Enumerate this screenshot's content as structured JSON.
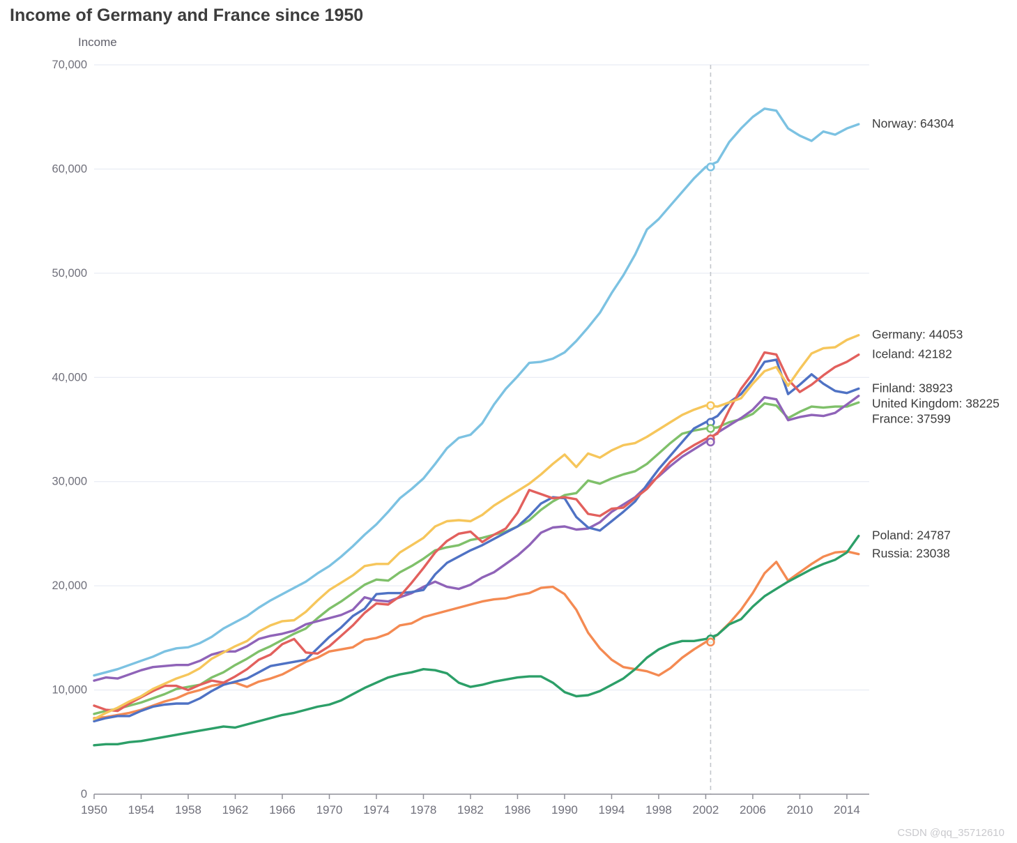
{
  "watermark": "CSDN @qq_35712610",
  "chart_data": {
    "type": "line",
    "title": "Income of Germany and France since 1950",
    "ylabel": "Income",
    "xlabel": "",
    "grid": true,
    "legend_position": "end-of-line-labels",
    "xlim": [
      1950,
      2015.9
    ],
    "ylim": [
      0,
      70000
    ],
    "x_ticks": [
      1950,
      1954,
      1958,
      1962,
      1966,
      1970,
      1974,
      1978,
      1982,
      1986,
      1990,
      1994,
      1998,
      2002,
      2006,
      2010,
      2014
    ],
    "y_ticks": [
      {
        "value": 0,
        "label": "0"
      },
      {
        "value": 10000,
        "label": "10,000"
      },
      {
        "value": 20000,
        "label": "20,000"
      },
      {
        "value": 30000,
        "label": "30,000"
      },
      {
        "value": 40000,
        "label": "40,000"
      },
      {
        "value": 50000,
        "label": "50,000"
      },
      {
        "value": 60000,
        "label": "60,000"
      },
      {
        "value": 70000,
        "label": "70,000"
      }
    ],
    "crosshair_year": 2002,
    "years_start": 1950,
    "series": [
      {
        "name": "Norway",
        "end_value": 64304,
        "end_label": "Norway: 64304",
        "color": "#7cc2e2",
        "values": [
          11400,
          11700,
          12000,
          12400,
          12800,
          13200,
          13700,
          14000,
          14100,
          14500,
          15100,
          15900,
          16500,
          17100,
          17900,
          18600,
          19200,
          19800,
          20400,
          21200,
          21900,
          22800,
          23800,
          24900,
          25900,
          27100,
          28400,
          29300,
          30300,
          31700,
          33200,
          34200,
          34500,
          35600,
          37400,
          38900,
          40100,
          41400,
          41500,
          41800,
          42400,
          43500,
          44800,
          46200,
          48100,
          49800,
          51800,
          54200,
          55200,
          56500,
          57800,
          59100,
          60200,
          60700,
          62600,
          63900,
          65000,
          65800,
          65600,
          63900,
          63200,
          62700,
          63600,
          63300,
          63900,
          64304
        ]
      },
      {
        "name": "Germany",
        "end_value": 44053,
        "end_label": "Germany: 44053",
        "color": "#f6c65b",
        "values": [
          7200,
          7800,
          8300,
          8900,
          9400,
          10100,
          10600,
          11100,
          11500,
          12100,
          13000,
          13600,
          14200,
          14700,
          15600,
          16200,
          16600,
          16700,
          17500,
          18600,
          19600,
          20300,
          21000,
          21900,
          22100,
          22100,
          23200,
          23900,
          24600,
          25700,
          26200,
          26300,
          26200,
          26800,
          27700,
          28400,
          29100,
          29800,
          30700,
          31700,
          32600,
          31400,
          32700,
          32300,
          33000,
          33500,
          33700,
          34300,
          35000,
          35700,
          36400,
          36900,
          37300,
          37200,
          37600,
          38000,
          39400,
          40600,
          41000,
          39200,
          40800,
          42300,
          42800,
          42900,
          43600,
          44053
        ]
      },
      {
        "name": "Iceland",
        "end_value": 42182,
        "end_label": "Iceland: 42182",
        "color": "#e2605d",
        "values": [
          8500,
          8100,
          8000,
          8700,
          9300,
          9900,
          10400,
          10400,
          10000,
          10500,
          10900,
          10700,
          11300,
          12000,
          12900,
          13400,
          14400,
          14900,
          13600,
          13500,
          14200,
          15200,
          16200,
          17400,
          18300,
          18200,
          19000,
          20300,
          21700,
          23200,
          24300,
          25000,
          25200,
          24200,
          24900,
          25500,
          27000,
          29200,
          28800,
          28400,
          28500,
          28300,
          26900,
          26700,
          27400,
          27500,
          28400,
          29300,
          30600,
          31900,
          32800,
          33500,
          34100,
          34600,
          36900,
          38900,
          40400,
          42400,
          42200,
          39800,
          38600,
          39300,
          40200,
          41000,
          41500,
          42182
        ]
      },
      {
        "name": "Finland",
        "end_value": 38923,
        "end_label": "Finland: 38923",
        "color": "#4f72c4",
        "values": [
          7000,
          7300,
          7500,
          7500,
          8000,
          8400,
          8600,
          8700,
          8700,
          9200,
          9900,
          10500,
          10800,
          11100,
          11700,
          12300,
          12500,
          12700,
          12900,
          14000,
          15100,
          16000,
          17100,
          17800,
          19200,
          19300,
          19300,
          19400,
          19600,
          21100,
          22200,
          22800,
          23400,
          23900,
          24500,
          25100,
          25700,
          26700,
          27900,
          28500,
          28400,
          26600,
          25600,
          25300,
          26200,
          27100,
          28100,
          29700,
          31200,
          32500,
          33800,
          35100,
          35700,
          36300,
          37600,
          38400,
          39800,
          41500,
          41700,
          38400,
          39300,
          40300,
          39400,
          38700,
          38500,
          38923
        ]
      },
      {
        "name": "United Kingdom",
        "end_value": 38225,
        "end_label": "United Kingdom: 38225",
        "color": "#8f63b8",
        "values": [
          10900,
          11200,
          11100,
          11500,
          11900,
          12200,
          12300,
          12400,
          12400,
          12800,
          13400,
          13700,
          13700,
          14200,
          14900,
          15200,
          15400,
          15700,
          16300,
          16600,
          16900,
          17200,
          17700,
          18900,
          18600,
          18500,
          18900,
          19300,
          19900,
          20400,
          19900,
          19700,
          20100,
          20800,
          21300,
          22100,
          22900,
          23900,
          25100,
          25600,
          25700,
          25400,
          25500,
          26100,
          27100,
          27800,
          28500,
          29600,
          30500,
          31500,
          32400,
          33100,
          33800,
          34700,
          35400,
          36100,
          36900,
          38100,
          37900,
          35900,
          36200,
          36400,
          36300,
          36600,
          37400,
          38225
        ]
      },
      {
        "name": "France",
        "end_value": 37599,
        "end_label": "France: 37599",
        "color": "#7fc06a",
        "values": [
          7700,
          8000,
          8200,
          8500,
          8800,
          9200,
          9600,
          10100,
          10300,
          10500,
          11200,
          11700,
          12400,
          13000,
          13700,
          14200,
          14800,
          15400,
          15900,
          16900,
          17800,
          18500,
          19300,
          20100,
          20600,
          20500,
          21300,
          21900,
          22600,
          23400,
          23700,
          23900,
          24400,
          24600,
          24900,
          25200,
          25700,
          26300,
          27300,
          28100,
          28700,
          28900,
          30100,
          29800,
          30300,
          30700,
          31000,
          31700,
          32700,
          33700,
          34600,
          34900,
          35100,
          35200,
          35700,
          36000,
          36500,
          37500,
          37300,
          36100,
          36700,
          37200,
          37100,
          37200,
          37200,
          37599
        ]
      },
      {
        "name": "Poland",
        "end_value": 24787,
        "end_label": "Poland: 24787",
        "color": "#2c9f68",
        "values": [
          4700,
          4800,
          4800,
          5000,
          5100,
          5300,
          5500,
          5700,
          5900,
          6100,
          6300,
          6500,
          6400,
          6700,
          7000,
          7300,
          7600,
          7800,
          8100,
          8400,
          8600,
          9000,
          9600,
          10200,
          10700,
          11200,
          11500,
          11700,
          12000,
          11900,
          11600,
          10700,
          10300,
          10500,
          10800,
          11000,
          11200,
          11300,
          11300,
          10700,
          9800,
          9400,
          9500,
          9900,
          10500,
          11100,
          12000,
          13100,
          13900,
          14400,
          14700,
          14700,
          14900,
          15300,
          16300,
          16800,
          18000,
          19000,
          19700,
          20400,
          21000,
          21600,
          22100,
          22500,
          23200,
          24787
        ]
      },
      {
        "name": "Russia",
        "end_value": 23038,
        "end_label": "Russia: 23038",
        "color": "#f48a52",
        "values": [
          7300,
          7400,
          7600,
          7800,
          8100,
          8500,
          8900,
          9200,
          9700,
          10000,
          10400,
          10600,
          10700,
          10300,
          10800,
          11100,
          11500,
          12100,
          12700,
          13100,
          13700,
          13900,
          14100,
          14800,
          15000,
          15400,
          16200,
          16400,
          17000,
          17300,
          17600,
          17900,
          18200,
          18500,
          18700,
          18800,
          19100,
          19300,
          19800,
          19900,
          19200,
          17700,
          15500,
          14000,
          12900,
          12200,
          12000,
          11800,
          11400,
          12100,
          13100,
          13900,
          14600,
          15300,
          16400,
          17700,
          19300,
          21200,
          22300,
          20500,
          21300,
          22100,
          22800,
          23200,
          23300,
          23038
        ]
      }
    ],
    "style": {
      "grid_color": "#e3e7f1",
      "axis_color": "#8f8f98",
      "tick_text_color": "#70707b",
      "label_text_color": "#3c3c3c",
      "crosshair_color": "#c2c6cb",
      "title_color": "#3d3d3d"
    }
  }
}
